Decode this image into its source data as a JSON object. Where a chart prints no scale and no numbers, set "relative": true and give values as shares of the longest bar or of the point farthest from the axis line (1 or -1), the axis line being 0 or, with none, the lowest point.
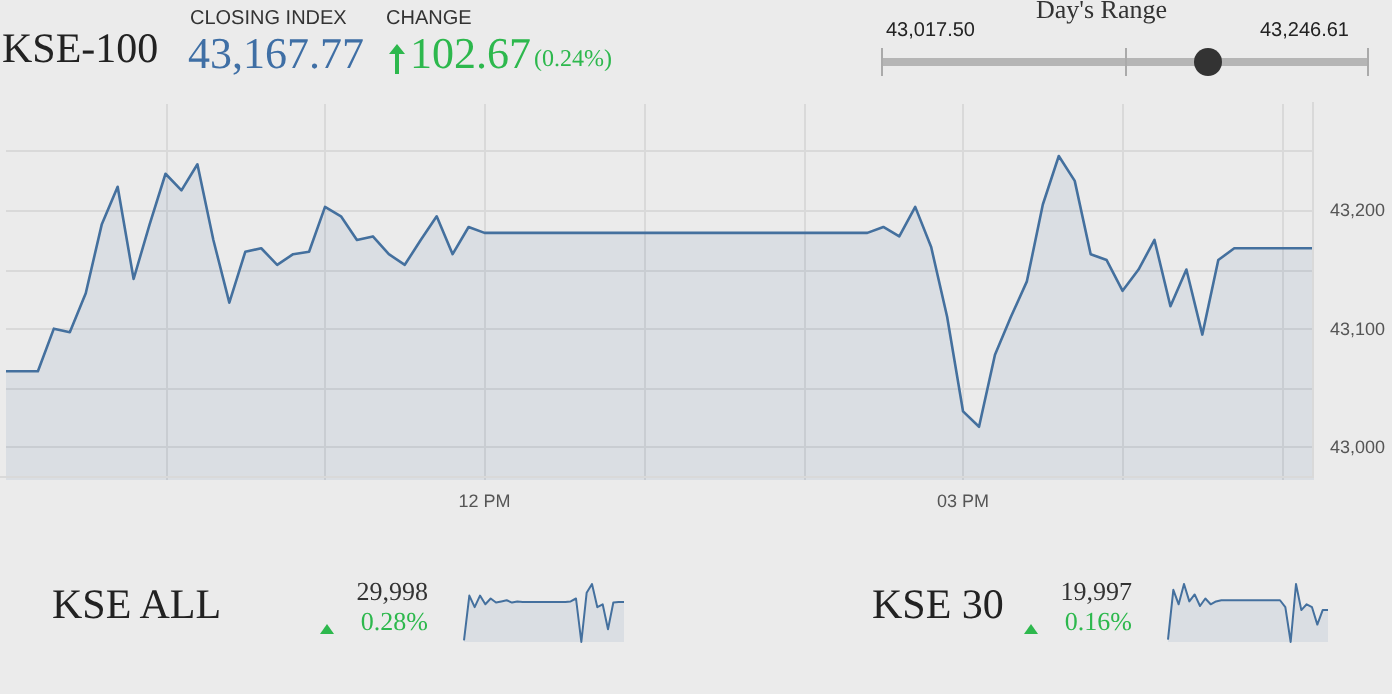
{
  "chart_data": [
    {
      "type": "other",
      "title": "KSE-100",
      "annotations": [
        "CLOSING INDEX",
        "43,167.77",
        "CHANGE",
        "102.67",
        "(0.24%)",
        "Day's Range",
        "43,017.50",
        "43,246.61"
      ]
    },
    {
      "type": "area",
      "color": "#44709e",
      "categories": [
        null,
        null,
        null,
        null,
        null,
        null,
        null,
        null,
        null,
        null,
        null,
        null,
        null,
        null,
        null,
        null,
        null,
        null,
        null,
        null,
        null,
        null,
        null,
        null,
        null,
        null,
        null,
        null,
        null,
        null,
        "12 PM",
        null,
        null,
        null,
        null,
        null,
        null,
        null,
        null,
        null,
        null,
        null,
        null,
        null,
        null,
        null,
        null,
        null,
        null,
        null,
        null,
        null,
        null,
        null,
        null,
        null,
        null,
        null,
        null,
        null,
        "03 PM",
        null,
        null,
        null,
        null,
        null,
        null,
        null,
        null,
        null,
        null,
        null,
        null,
        null,
        null,
        null,
        null,
        null,
        null,
        null,
        null,
        null,
        null
      ],
      "values": [
        43064,
        43064,
        43064,
        43100,
        43097,
        43130,
        43188,
        43220,
        43142,
        43188,
        43231,
        43217,
        43239,
        43175,
        43122,
        43165,
        43168,
        43154,
        43163,
        43165,
        43203,
        43195,
        43175,
        43178,
        43163,
        43154,
        43175,
        43195,
        43163,
        43186,
        43181,
        43181,
        43181,
        43181,
        43181,
        43181,
        43181,
        43181,
        43181,
        43181,
        43181,
        43181,
        43181,
        43181,
        43181,
        43181,
        43181,
        43181,
        43181,
        43181,
        43181,
        43181,
        43181,
        43181,
        43181,
        43186,
        43178,
        43203,
        43169,
        43110,
        43030,
        43017,
        43078,
        43110,
        43140,
        43205,
        43246,
        43225,
        43163,
        43158,
        43132,
        43150,
        43175,
        43119,
        43150,
        43095,
        43158,
        43168,
        43168,
        43168,
        43168,
        43168,
        43168
      ],
      "ylim": [
        42972,
        43290
      ],
      "yticks": [
        {
          "value": 43000,
          "label": "43,000"
        },
        {
          "value": 43050,
          "label": null
        },
        {
          "value": 43100,
          "label": "43,100"
        },
        {
          "value": 43150,
          "label": null
        },
        {
          "value": 43200,
          "label": "43,200"
        },
        {
          "value": 43250,
          "label": null
        }
      ],
      "grid": true
    },
    {
      "type": "area",
      "relative": true,
      "color": "#44709e",
      "title": "KSE ALL",
      "annotations": [
        "29,998",
        "0.28%"
      ],
      "categories": [
        null,
        null,
        null,
        null,
        null,
        null,
        null,
        null,
        null,
        null,
        null,
        null,
        null,
        null,
        null,
        null,
        null,
        null,
        null,
        null,
        null,
        null,
        null,
        null,
        null,
        null,
        null,
        null,
        null,
        null,
        null
      ],
      "values": [
        0.03,
        0.8,
        0.6,
        0.8,
        0.65,
        0.75,
        0.68,
        0.7,
        0.72,
        0.68,
        0.7,
        0.69,
        0.69,
        0.69,
        0.69,
        0.69,
        0.69,
        0.69,
        0.69,
        0.69,
        0.7,
        0.75,
        0,
        0.85,
        1,
        0.6,
        0.65,
        0.22,
        0.68,
        0.69,
        0.69
      ]
    },
    {
      "type": "area",
      "relative": true,
      "color": "#44709e",
      "title": "KSE 30",
      "annotations": [
        "19,997",
        "0.16%"
      ],
      "categories": [
        null,
        null,
        null,
        null,
        null,
        null,
        null,
        null,
        null,
        null,
        null,
        null,
        null,
        null,
        null,
        null,
        null,
        null,
        null,
        null,
        null,
        null,
        null,
        null,
        null,
        null,
        null,
        null,
        null,
        null,
        null
      ],
      "values": [
        0.04,
        0.9,
        0.65,
        1,
        0.7,
        0.82,
        0.62,
        0.75,
        0.65,
        0.7,
        0.72,
        0.72,
        0.72,
        0.72,
        0.72,
        0.72,
        0.72,
        0.72,
        0.72,
        0.72,
        0.72,
        0.72,
        0.6,
        0,
        1,
        0.55,
        0.65,
        0.6,
        0.3,
        0.55,
        0.55
      ]
    }
  ]
}
